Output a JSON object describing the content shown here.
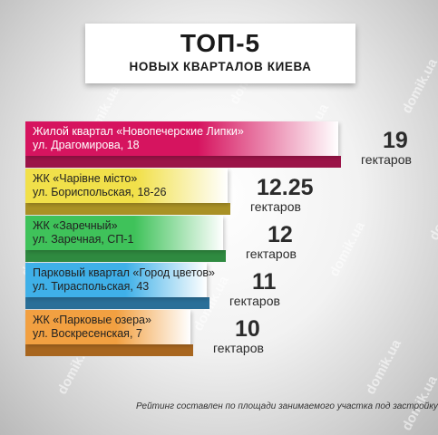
{
  "title": "ТОП-5",
  "subtitle": "НОВЫХ КВАРТАЛОВ КИЕВА",
  "watermark": "domik.ua",
  "footnote": "Рейтинг составлен по площади занимаемого участка под застройку",
  "chart_data": {
    "type": "bar",
    "orientation": "horizontal",
    "title": "ТОП-5",
    "subtitle": "НОВЫХ КВАРТАЛОВ КИЕВА",
    "unit": "гектаров",
    "categories": [
      "Жилой квартал «Новопечерские Липки»",
      "ЖК «Чарівне місто»",
      "ЖК «Заречный»",
      "Парковый квартал «Город цветов»",
      "ЖК «Парковые озера»"
    ],
    "addresses": [
      "ул. Драгомирова, 18",
      "ул. Бориспольская, 18-26",
      "ул. Заречная, СП-1",
      "ул. Тираспольская, 43",
      "ул. Воскресенская, 7"
    ],
    "values": [
      19,
      12.25,
      12,
      11,
      10
    ],
    "value_labels": [
      "19",
      "12.25",
      "12",
      "11",
      "10"
    ],
    "colors": [
      {
        "card": "#d6145f",
        "base": "#9b1448",
        "text": "#ffffff"
      },
      {
        "card": "#f1e04a",
        "base": "#a99125",
        "text": "#222222"
      },
      {
        "card": "#3fc25a",
        "base": "#2f8a40",
        "text": "#222222"
      },
      {
        "card": "#3fb0e8",
        "base": "#2a6f98",
        "text": "#222222"
      },
      {
        "card": "#f2a041",
        "base": "#a8661f",
        "text": "#222222"
      }
    ]
  }
}
